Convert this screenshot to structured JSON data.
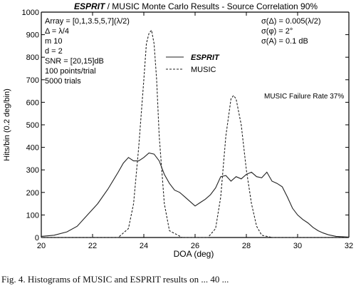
{
  "chart_data": {
    "type": "line",
    "title_italic": "ESPRIT",
    "title_rest": " / MUSIC Monte Carlo Results - Source Correlation 90%",
    "xlabel": "DOA (deg)",
    "ylabel": "Hits/bin (0.2 deg/bin)",
    "xlim": [
      20,
      32
    ],
    "ylim": [
      0,
      1000
    ],
    "x_ticks": [
      20,
      22,
      24,
      26,
      28,
      30,
      32
    ],
    "y_ticks": [
      0,
      100,
      200,
      300,
      400,
      500,
      600,
      700,
      800,
      900,
      1000
    ],
    "grid": false,
    "legend_position": "upper-middle",
    "params_left": [
      "Array = [0,1,3.5,5,7](λ/2)",
      "Δ = λ/4",
      "m   10",
      "d = 2",
      "SNR = [20,15]dB",
      "100 points/trial",
      "5000 trials"
    ],
    "params_right": [
      "σ(Δ) = 0.005(λ/2)",
      "σ(φ) = 2°",
      "σ(A) = 0.1 dB"
    ],
    "annotation": "MUSIC Failure Rate 37%",
    "series": [
      {
        "name": "ESPRIT",
        "style": "solid",
        "x": [
          20.0,
          20.5,
          21.0,
          21.4,
          21.8,
          22.2,
          22.6,
          23.0,
          23.2,
          23.4,
          23.6,
          23.8,
          24.0,
          24.2,
          24.4,
          24.6,
          24.8,
          25.0,
          25.2,
          25.4,
          25.6,
          25.8,
          26.0,
          26.2,
          26.4,
          26.6,
          26.8,
          27.0,
          27.2,
          27.4,
          27.6,
          27.8,
          28.0,
          28.2,
          28.4,
          28.6,
          28.8,
          29.0,
          29.2,
          29.4,
          29.6,
          29.8,
          30.0,
          30.2,
          30.4,
          30.6,
          30.8,
          31.0,
          31.2,
          31.5,
          32.0
        ],
        "y": [
          5,
          10,
          25,
          50,
          100,
          150,
          215,
          290,
          330,
          355,
          340,
          340,
          355,
          375,
          370,
          340,
          280,
          240,
          210,
          200,
          180,
          160,
          140,
          155,
          170,
          190,
          220,
          270,
          275,
          250,
          270,
          260,
          280,
          290,
          270,
          265,
          290,
          250,
          240,
          225,
          180,
          130,
          100,
          80,
          65,
          45,
          30,
          20,
          12,
          5,
          2
        ]
      },
      {
        "name": "MUSIC",
        "style": "dashed",
        "x": [
          20.0,
          22.0,
          23.0,
          23.4,
          23.6,
          23.8,
          24.0,
          24.1,
          24.2,
          24.3,
          24.4,
          24.5,
          24.6,
          24.8,
          25.0,
          25.5,
          26.0,
          26.5,
          26.8,
          27.0,
          27.2,
          27.4,
          27.5,
          27.6,
          27.8,
          28.0,
          28.2,
          28.4,
          28.6,
          29.0,
          30.0,
          32.0
        ],
        "y": [
          0,
          0,
          0,
          40,
          150,
          400,
          700,
          860,
          905,
          920,
          860,
          700,
          450,
          150,
          30,
          0,
          0,
          0,
          40,
          180,
          450,
          615,
          630,
          615,
          500,
          300,
          150,
          50,
          10,
          0,
          0,
          0
        ]
      }
    ]
  },
  "caption": "Fig. 4.  Histograms of MUSIC and ESPRIT results on ... 40 ..."
}
